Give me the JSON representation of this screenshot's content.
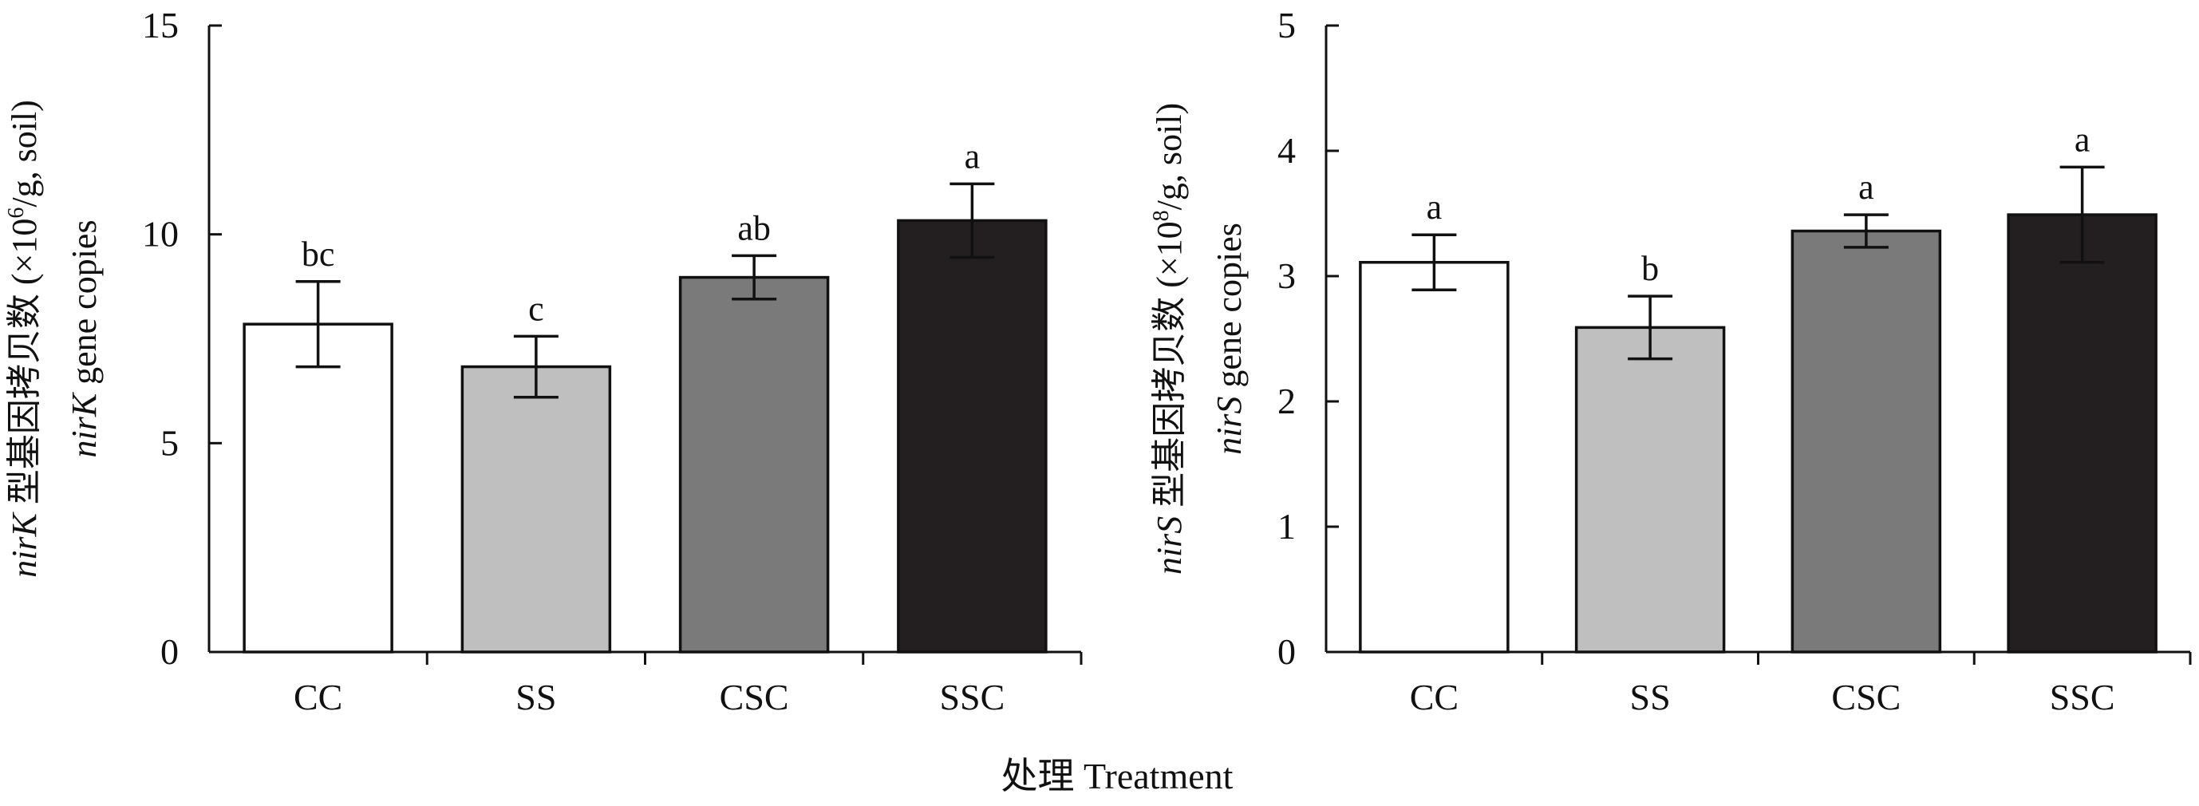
{
  "x_axis_title": "处理 Treatment",
  "chart_data": [
    {
      "type": "bar",
      "categories": [
        "CC",
        "SS",
        "CSC",
        "SSC"
      ],
      "values": [
        7.85,
        6.83,
        8.97,
        10.33
      ],
      "errors": [
        1.02,
        0.73,
        0.52,
        0.88
      ],
      "significance": [
        "bc",
        "c",
        "ab",
        "a"
      ],
      "bar_colors": [
        "#ffffff",
        "#bfbfbf",
        "#7a7a7a",
        "#231f20"
      ],
      "ylim": [
        0,
        15
      ],
      "yticks": [
        "0",
        "5",
        "10",
        "15"
      ],
      "ylabel_line1_italic": "nirK",
      "ylabel_line1_rest": " 型基因拷贝数 (×10",
      "ylabel_line1_exp": "6",
      "ylabel_line1_tail": "/g, soil)",
      "ylabel_line2_italic": "nirK",
      "ylabel_line2_rest": " gene copies"
    },
    {
      "type": "bar",
      "categories": [
        "CC",
        "SS",
        "CSC",
        "SSC"
      ],
      "values": [
        3.11,
        2.59,
        3.36,
        3.49
      ],
      "errors": [
        0.22,
        0.25,
        0.13,
        0.38
      ],
      "significance": [
        "a",
        "b",
        "a",
        "a"
      ],
      "bar_colors": [
        "#ffffff",
        "#bfbfbf",
        "#7a7a7a",
        "#231f20"
      ],
      "ylim": [
        0,
        5
      ],
      "yticks": [
        "0",
        "1",
        "2",
        "3",
        "4",
        "5"
      ],
      "ylabel_line1_italic": "nirS",
      "ylabel_line1_rest": " 型基因拷贝数 (×10",
      "ylabel_line1_exp": "8",
      "ylabel_line1_tail": "/g, soil)",
      "ylabel_line2_italic": "nirS",
      "ylabel_line2_rest": " gene copies"
    }
  ]
}
